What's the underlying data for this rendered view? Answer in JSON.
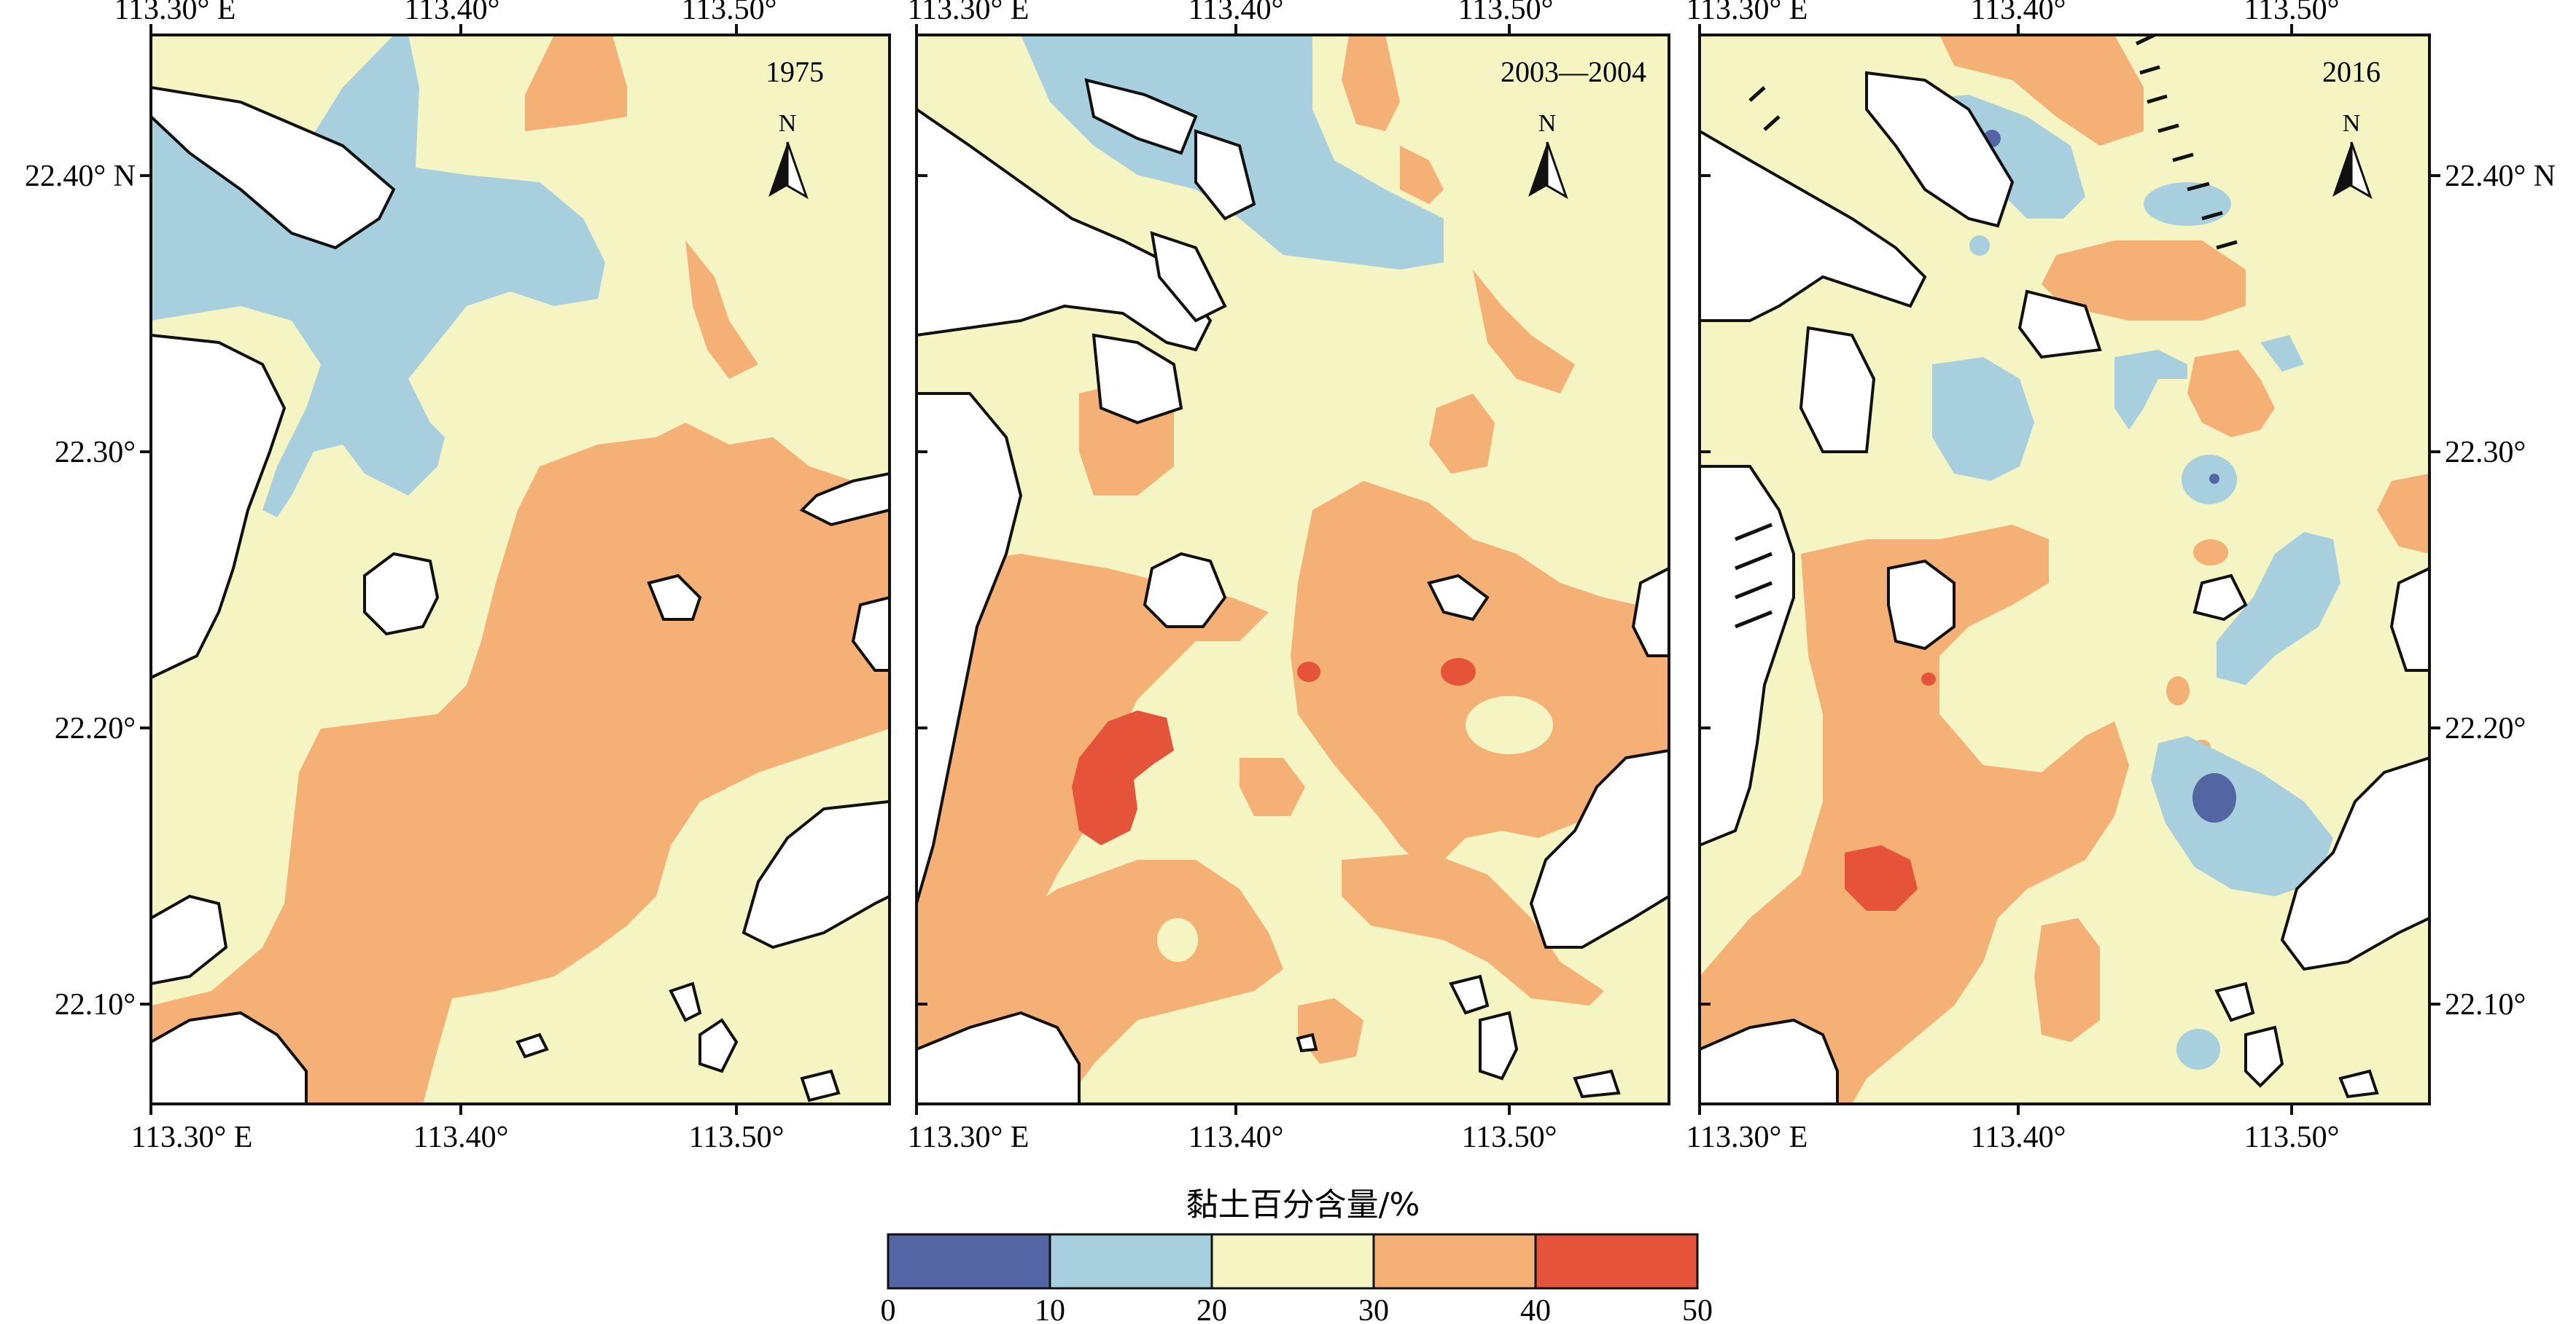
{
  "figure": {
    "panels": [
      {
        "id": "p1975",
        "label": "1975"
      },
      {
        "id": "p2003",
        "label": "2003—2004"
      },
      {
        "id": "p2016",
        "label": "2016"
      }
    ],
    "north_label": "N",
    "lon_labels": [
      "113.30° E",
      "113.40°",
      "113.50°"
    ],
    "lat_labels_left": [
      "22.40° N",
      "22.30°",
      "22.20°",
      "22.10°"
    ],
    "lat_labels_right": [
      "22.40° N",
      "22.30°",
      "22.20°",
      "22.10°"
    ]
  },
  "legend": {
    "title": "黏土百分含量/%",
    "ticks": [
      "0",
      "10",
      "20",
      "30",
      "40",
      "50"
    ],
    "classes": [
      {
        "range": "0-10",
        "color": "#5366a3"
      },
      {
        "range": "10-20",
        "color": "#a8cfdd"
      },
      {
        "range": "20-30",
        "color": "#f5f5c4"
      },
      {
        "range": "30-40",
        "color": "#f5b075"
      },
      {
        "range": "40-50",
        "color": "#e5543a"
      }
    ]
  },
  "colors": {
    "class_0_10": "#5366a3",
    "class_10_20": "#a8cfdd",
    "class_20_30": "#f5f5c4",
    "class_30_40": "#f5b075",
    "class_40_50": "#e5543a",
    "land": "#ffffff",
    "outline": "#111111"
  }
}
